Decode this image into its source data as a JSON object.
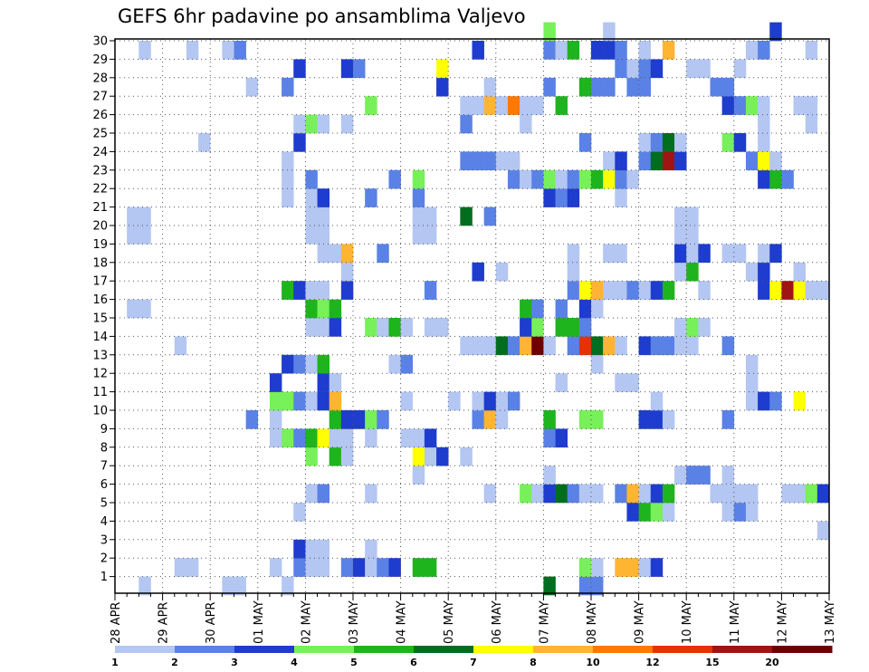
{
  "title": "GEFS 6hr padavine po ansamblima Valjevo",
  "chart_data": {
    "type": "heatmap",
    "title": "GEFS 6hr padavine po ansamblima Valjevo",
    "x_label": "",
    "y_label": "",
    "y_ticks": [
      "1",
      "2",
      "3",
      "4",
      "5",
      "6",
      "7",
      "8",
      "9",
      "10",
      "11",
      "12",
      "13",
      "14",
      "15",
      "16",
      "17",
      "18",
      "19",
      "20",
      "21",
      "22",
      "23",
      "24",
      "25",
      "26",
      "27",
      "28",
      "29",
      "30"
    ],
    "x_ticks": [
      "28 APR",
      "29 APR",
      "30 APR",
      "01 MAY",
      "02 MAY",
      "03 MAY",
      "04 MAY",
      "05 MAY",
      "06 MAY",
      "07 MAY",
      "08 MAY",
      "09 MAY",
      "10 MAY",
      "11 MAY",
      "12 MAY",
      "13 MAY"
    ],
    "time_steps_per_day": 4,
    "n_columns": 60,
    "levels": [
      {
        "label": "1",
        "color": "#b4c6f2"
      },
      {
        "label": "2",
        "color": "#5a82e6"
      },
      {
        "label": "3",
        "color": "#1e3ccd"
      },
      {
        "label": "4",
        "color": "#78f05a"
      },
      {
        "label": "5",
        "color": "#1eb41e"
      },
      {
        "label": "6",
        "color": "#006e1e"
      },
      {
        "label": "7",
        "color": "#ffff00"
      },
      {
        "label": "8",
        "color": "#ffb432"
      },
      {
        "label": "10",
        "color": "#ff7800"
      },
      {
        "label": "12",
        "color": "#e63200"
      },
      {
        "label": "15",
        "color": "#a01414"
      },
      {
        "label": "20",
        "color": "#6e0000"
      }
    ],
    "cells": {
      "30": [
        [
          36,
          4
        ],
        [
          41,
          1
        ],
        [
          55,
          3
        ]
      ],
      "29": [
        [
          2,
          1
        ],
        [
          6,
          1
        ],
        [
          9,
          1
        ],
        [
          10,
          2
        ],
        [
          30,
          3
        ],
        [
          36,
          2
        ],
        [
          37,
          1
        ],
        [
          38,
          5
        ],
        [
          40,
          3
        ],
        [
          41,
          3
        ],
        [
          42,
          2
        ],
        [
          44,
          1
        ],
        [
          46,
          8
        ],
        [
          53,
          1
        ],
        [
          54,
          2
        ],
        [
          58,
          1
        ]
      ],
      "28": [
        [
          15,
          3
        ],
        [
          19,
          3
        ],
        [
          20,
          2
        ],
        [
          27,
          7
        ],
        [
          42,
          2
        ],
        [
          43,
          1
        ],
        [
          44,
          2
        ],
        [
          45,
          3
        ],
        [
          48,
          1
        ],
        [
          49,
          1
        ],
        [
          52,
          1
        ]
      ],
      "27": [
        [
          11,
          1
        ],
        [
          14,
          2
        ],
        [
          27,
          3
        ],
        [
          31,
          1
        ],
        [
          36,
          2
        ],
        [
          39,
          5
        ],
        [
          40,
          2
        ],
        [
          41,
          2
        ],
        [
          43,
          2
        ],
        [
          44,
          2
        ],
        [
          50,
          2
        ],
        [
          51,
          2
        ]
      ],
      "26": [
        [
          21,
          4
        ],
        [
          29,
          1
        ],
        [
          30,
          1
        ],
        [
          31,
          8
        ],
        [
          32,
          1
        ],
        [
          33,
          9
        ],
        [
          34,
          1
        ],
        [
          35,
          1
        ],
        [
          37,
          5
        ],
        [
          51,
          3
        ],
        [
          52,
          2
        ],
        [
          53,
          4
        ],
        [
          54,
          1
        ],
        [
          57,
          1
        ],
        [
          58,
          1
        ]
      ],
      "25": [
        [
          15,
          1
        ],
        [
          16,
          4
        ],
        [
          17,
          1
        ],
        [
          19,
          1
        ],
        [
          29,
          2
        ],
        [
          34,
          1
        ],
        [
          54,
          1
        ],
        [
          58,
          1
        ]
      ],
      "24": [
        [
          7,
          1
        ],
        [
          15,
          3
        ],
        [
          39,
          2
        ],
        [
          44,
          1
        ],
        [
          45,
          2
        ],
        [
          46,
          6
        ],
        [
          47,
          1
        ],
        [
          51,
          4
        ],
        [
          52,
          3
        ],
        [
          54,
          1
        ]
      ],
      "23": [
        [
          14,
          1
        ],
        [
          29,
          2
        ],
        [
          30,
          2
        ],
        [
          31,
          2
        ],
        [
          32,
          1
        ],
        [
          33,
          1
        ],
        [
          41,
          1
        ],
        [
          42,
          3
        ],
        [
          44,
          2
        ],
        [
          45,
          6
        ],
        [
          46,
          11
        ],
        [
          47,
          3
        ],
        [
          53,
          2
        ],
        [
          54,
          7
        ],
        [
          55,
          1
        ]
      ],
      "22": [
        [
          14,
          1
        ],
        [
          16,
          2
        ],
        [
          23,
          2
        ],
        [
          25,
          4
        ],
        [
          33,
          2
        ],
        [
          34,
          1
        ],
        [
          35,
          2
        ],
        [
          36,
          4
        ],
        [
          37,
          1
        ],
        [
          38,
          2
        ],
        [
          39,
          4
        ],
        [
          40,
          5
        ],
        [
          41,
          7
        ],
        [
          42,
          2
        ],
        [
          43,
          1
        ],
        [
          54,
          3
        ],
        [
          55,
          5
        ],
        [
          56,
          2
        ]
      ],
      "21": [
        [
          14,
          1
        ],
        [
          16,
          1
        ],
        [
          17,
          3
        ],
        [
          21,
          2
        ],
        [
          25,
          2
        ],
        [
          36,
          3
        ],
        [
          37,
          2
        ],
        [
          38,
          3
        ],
        [
          42,
          1
        ]
      ],
      "20": [
        [
          1,
          1
        ],
        [
          2,
          1
        ],
        [
          16,
          1
        ],
        [
          17,
          1
        ],
        [
          25,
          1
        ],
        [
          26,
          1
        ],
        [
          29,
          6
        ],
        [
          31,
          2
        ],
        [
          47,
          1
        ],
        [
          48,
          1
        ]
      ],
      "19": [
        [
          1,
          1
        ],
        [
          2,
          1
        ],
        [
          16,
          1
        ],
        [
          17,
          1
        ],
        [
          25,
          1
        ],
        [
          26,
          1
        ],
        [
          47,
          1
        ],
        [
          48,
          1
        ]
      ],
      "18": [
        [
          17,
          1
        ],
        [
          18,
          1
        ],
        [
          19,
          8
        ],
        [
          22,
          2
        ],
        [
          38,
          1
        ],
        [
          41,
          1
        ],
        [
          42,
          1
        ],
        [
          47,
          3
        ],
        [
          48,
          1
        ],
        [
          49,
          3
        ],
        [
          51,
          1
        ],
        [
          52,
          1
        ],
        [
          54,
          1
        ],
        [
          55,
          3
        ]
      ],
      "17": [
        [
          19,
          1
        ],
        [
          30,
          3
        ],
        [
          32,
          1
        ],
        [
          38,
          1
        ],
        [
          47,
          1
        ],
        [
          48,
          5
        ],
        [
          53,
          1
        ],
        [
          54,
          3
        ],
        [
          57,
          1
        ]
      ],
      "16": [
        [
          14,
          5
        ],
        [
          15,
          3
        ],
        [
          16,
          1
        ],
        [
          17,
          1
        ],
        [
          19,
          3
        ],
        [
          26,
          2
        ],
        [
          38,
          2
        ],
        [
          39,
          7
        ],
        [
          40,
          8
        ],
        [
          41,
          1
        ],
        [
          42,
          1
        ],
        [
          43,
          2
        ],
        [
          44,
          1
        ],
        [
          45,
          3
        ],
        [
          46,
          5
        ],
        [
          49,
          1
        ],
        [
          54,
          3
        ],
        [
          55,
          7
        ],
        [
          56,
          11
        ],
        [
          57,
          7
        ],
        [
          58,
          1
        ],
        [
          59,
          1
        ]
      ],
      "15": [
        [
          1,
          1
        ],
        [
          2,
          1
        ],
        [
          16,
          5
        ],
        [
          17,
          4
        ],
        [
          18,
          5
        ],
        [
          34,
          5
        ],
        [
          35,
          2
        ],
        [
          37,
          2
        ],
        [
          39,
          3
        ],
        [
          40,
          1
        ]
      ],
      "14": [
        [
          16,
          1
        ],
        [
          17,
          1
        ],
        [
          18,
          3
        ],
        [
          21,
          4
        ],
        [
          22,
          1
        ],
        [
          23,
          5
        ],
        [
          24,
          1
        ],
        [
          26,
          1
        ],
        [
          27,
          1
        ],
        [
          34,
          3
        ],
        [
          35,
          4
        ],
        [
          37,
          5
        ],
        [
          38,
          5
        ],
        [
          39,
          2
        ],
        [
          47,
          1
        ],
        [
          48,
          4
        ],
        [
          49,
          1
        ]
      ],
      "13": [
        [
          5,
          1
        ],
        [
          29,
          1
        ],
        [
          30,
          1
        ],
        [
          31,
          1
        ],
        [
          32,
          6
        ],
        [
          33,
          2
        ],
        [
          34,
          8
        ],
        [
          35,
          12
        ],
        [
          36,
          1
        ],
        [
          38,
          2
        ],
        [
          39,
          10
        ],
        [
          40,
          6
        ],
        [
          41,
          8
        ],
        [
          42,
          1
        ],
        [
          44,
          3
        ],
        [
          45,
          2
        ],
        [
          46,
          2
        ],
        [
          47,
          1
        ],
        [
          48,
          1
        ],
        [
          51,
          2
        ]
      ],
      "12": [
        [
          14,
          3
        ],
        [
          15,
          2
        ],
        [
          16,
          1
        ],
        [
          17,
          5
        ],
        [
          23,
          1
        ],
        [
          24,
          2
        ],
        [
          40,
          1
        ],
        [
          53,
          1
        ]
      ],
      "11": [
        [
          13,
          3
        ],
        [
          17,
          3
        ],
        [
          18,
          1
        ],
        [
          37,
          1
        ],
        [
          42,
          1
        ],
        [
          43,
          1
        ],
        [
          53,
          1
        ]
      ],
      "10": [
        [
          13,
          4
        ],
        [
          14,
          4
        ],
        [
          15,
          2
        ],
        [
          16,
          1
        ],
        [
          17,
          3
        ],
        [
          18,
          8
        ],
        [
          24,
          1
        ],
        [
          28,
          1
        ],
        [
          30,
          1
        ],
        [
          31,
          3
        ],
        [
          32,
          1
        ],
        [
          33,
          2
        ],
        [
          45,
          1
        ],
        [
          53,
          1
        ],
        [
          54,
          3
        ],
        [
          55,
          2
        ],
        [
          57,
          7
        ]
      ],
      "9": [
        [
          11,
          2
        ],
        [
          13,
          1
        ],
        [
          18,
          5
        ],
        [
          19,
          3
        ],
        [
          20,
          3
        ],
        [
          21,
          4
        ],
        [
          22,
          2
        ],
        [
          30,
          2
        ],
        [
          31,
          8
        ],
        [
          32,
          1
        ],
        [
          36,
          5
        ],
        [
          39,
          4
        ],
        [
          40,
          4
        ],
        [
          44,
          3
        ],
        [
          45,
          3
        ],
        [
          46,
          1
        ],
        [
          51,
          2
        ]
      ],
      "8": [
        [
          13,
          1
        ],
        [
          14,
          4
        ],
        [
          15,
          2
        ],
        [
          16,
          5
        ],
        [
          17,
          7
        ],
        [
          18,
          1
        ],
        [
          19,
          1
        ],
        [
          21,
          1
        ],
        [
          24,
          1
        ],
        [
          25,
          1
        ],
        [
          26,
          3
        ],
        [
          36,
          2
        ],
        [
          37,
          3
        ]
      ],
      "7": [
        [
          16,
          4
        ],
        [
          18,
          5
        ],
        [
          19,
          1
        ],
        [
          25,
          7
        ],
        [
          26,
          1
        ],
        [
          27,
          3
        ],
        [
          29,
          1
        ]
      ],
      "6": [
        [
          25,
          1
        ],
        [
          36,
          1
        ],
        [
          47,
          1
        ],
        [
          48,
          2
        ],
        [
          49,
          2
        ],
        [
          51,
          1
        ]
      ],
      "5": [
        [
          16,
          1
        ],
        [
          17,
          2
        ],
        [
          21,
          1
        ],
        [
          31,
          1
        ],
        [
          34,
          4
        ],
        [
          35,
          1
        ],
        [
          36,
          3
        ],
        [
          37,
          6
        ],
        [
          38,
          2
        ],
        [
          39,
          1
        ],
        [
          40,
          1
        ],
        [
          42,
          2
        ],
        [
          43,
          8
        ],
        [
          44,
          1
        ],
        [
          45,
          3
        ],
        [
          46,
          5
        ],
        [
          50,
          1
        ],
        [
          51,
          1
        ],
        [
          52,
          1
        ],
        [
          53,
          1
        ],
        [
          56,
          1
        ],
        [
          57,
          1
        ],
        [
          58,
          4
        ],
        [
          59,
          3
        ]
      ],
      "4": [
        [
          15,
          1
        ],
        [
          43,
          3
        ],
        [
          44,
          5
        ],
        [
          45,
          4
        ],
        [
          46,
          1
        ],
        [
          51,
          1
        ],
        [
          52,
          2
        ],
        [
          53,
          1
        ]
      ],
      "3": [
        [
          59,
          1
        ]
      ],
      "2": [
        [
          15,
          3
        ],
        [
          16,
          1
        ],
        [
          17,
          1
        ],
        [
          21,
          1
        ]
      ],
      "1": [
        [
          5,
          1
        ],
        [
          6,
          1
        ],
        [
          13,
          1
        ],
        [
          15,
          2
        ],
        [
          16,
          1
        ],
        [
          17,
          1
        ],
        [
          19,
          2
        ],
        [
          20,
          3
        ],
        [
          21,
          1
        ],
        [
          22,
          2
        ],
        [
          23,
          3
        ],
        [
          25,
          5
        ],
        [
          26,
          5
        ],
        [
          39,
          4
        ],
        [
          40,
          1
        ],
        [
          42,
          8
        ],
        [
          43,
          8
        ],
        [
          44,
          1
        ],
        [
          45,
          3
        ]
      ],
      "0": [
        [
          2,
          1
        ],
        [
          9,
          1
        ],
        [
          10,
          1
        ],
        [
          14,
          1
        ],
        [
          36,
          6
        ],
        [
          39,
          2
        ],
        [
          40,
          2
        ]
      ]
    }
  }
}
